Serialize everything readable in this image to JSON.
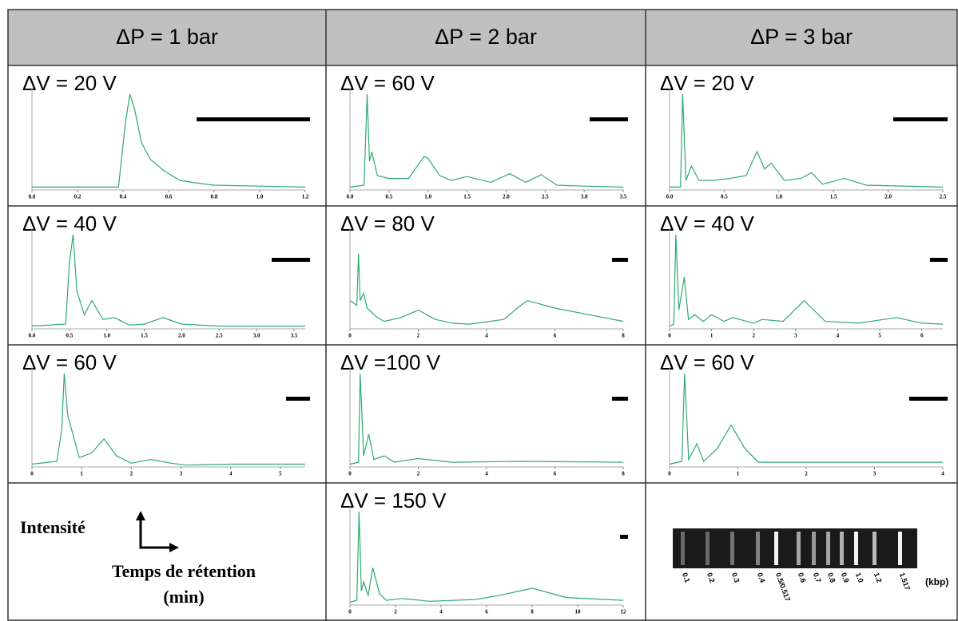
{
  "columns": [
    "ΔP = 1 bar",
    "ΔP = 2 bar",
    "ΔP = 3 bar"
  ],
  "legend": {
    "y_label": "Intensité",
    "x_label": "Temps de rétention",
    "x_unit": "(min)"
  },
  "gel": {
    "lanes": [
      "0.1",
      "0.2",
      "0.3",
      "0.4",
      "0.5/0.517",
      "0.6",
      "0.7",
      "0.8",
      "0.9",
      "1.0",
      "1.2",
      "1.517"
    ],
    "unit": "(kbp)"
  },
  "chart_data": [
    {
      "type": "line",
      "title": "ΔV = 20 V",
      "color": "#2eaa70",
      "xlim": [
        0,
        1.2
      ],
      "ylim": [
        0,
        100
      ],
      "xticks": [
        {
          "value": 0,
          "label": "0.0"
        },
        0.2,
        0.4,
        0.6,
        0.8,
        {
          "value": 1,
          "label": "1.0"
        },
        1.2
      ],
      "x": [
        0,
        0.38,
        0.41,
        0.43,
        0.45,
        0.48,
        0.52,
        0.58,
        0.65,
        0.7,
        0.8,
        1.0,
        1.2
      ],
      "values": [
        3,
        3,
        70,
        100,
        85,
        50,
        32,
        20,
        10,
        8,
        5,
        4,
        3
      ]
    },
    {
      "type": "line",
      "title": "ΔV = 60 V",
      "color": "#2eaa70",
      "xlim": [
        0,
        3.5
      ],
      "ylim": [
        0,
        100
      ],
      "xticks": [
        {
          "value": 0,
          "label": "0.0"
        },
        0.5,
        {
          "value": 1,
          "label": "1.0"
        },
        1.5,
        {
          "value": 2,
          "label": "2.0"
        },
        2.5,
        {
          "value": 3,
          "label": "3.0"
        },
        3.5
      ],
      "x": [
        0,
        0.18,
        0.22,
        0.25,
        0.28,
        0.35,
        0.5,
        0.75,
        0.95,
        1.0,
        1.15,
        1.3,
        1.5,
        1.8,
        2.05,
        2.25,
        2.45,
        2.65,
        3.0,
        3.5
      ],
      "values": [
        3,
        5,
        100,
        30,
        40,
        15,
        12,
        12,
        35,
        33,
        15,
        10,
        14,
        8,
        17,
        8,
        16,
        5,
        4,
        3
      ]
    },
    {
      "type": "line",
      "title": "ΔV = 20 V",
      "color": "#2eaa70",
      "xlim": [
        0,
        2.5
      ],
      "ylim": [
        0,
        100
      ],
      "xticks": [
        {
          "value": 0,
          "label": "0.0"
        },
        0.5,
        {
          "value": 1,
          "label": "1.0"
        },
        1.5,
        {
          "value": 2,
          "label": "2.0"
        },
        2.5
      ],
      "x": [
        0,
        0.1,
        0.12,
        0.15,
        0.2,
        0.27,
        0.4,
        0.55,
        0.7,
        0.8,
        0.87,
        0.93,
        1.05,
        1.2,
        1.3,
        1.4,
        1.6,
        1.8,
        2.5
      ],
      "values": [
        3,
        3,
        100,
        10,
        25,
        10,
        10,
        12,
        15,
        40,
        22,
        28,
        10,
        12,
        18,
        6,
        12,
        5,
        3
      ]
    },
    {
      "type": "line",
      "title": "ΔV = 40 V",
      "color": "#2eaa70",
      "xlim": [
        0,
        3.65
      ],
      "ylim": [
        0,
        100
      ],
      "xticks": [
        {
          "value": 0,
          "label": "0.0"
        },
        0.5,
        {
          "value": 1,
          "label": "1.0"
        },
        1.5,
        {
          "value": 2,
          "label": "2.0"
        },
        2.5,
        {
          "value": 3,
          "label": "3.0"
        },
        3.5
      ],
      "x": [
        0,
        0.45,
        0.5,
        0.55,
        0.6,
        0.7,
        0.8,
        0.95,
        1.1,
        1.3,
        1.5,
        1.75,
        2.0,
        2.5,
        3.65
      ],
      "values": [
        3,
        5,
        70,
        100,
        40,
        15,
        30,
        10,
        12,
        4,
        5,
        12,
        5,
        3,
        3
      ]
    },
    {
      "type": "line",
      "title": "ΔV = 80 V",
      "color": "#2eaa70",
      "xlim": [
        0,
        8
      ],
      "ylim": [
        0,
        100
      ],
      "xticks": [
        0,
        2,
        4,
        6,
        8
      ],
      "x": [
        0,
        0.2,
        0.25,
        0.3,
        0.4,
        0.5,
        0.8,
        1.0,
        1.5,
        2.0,
        2.5,
        3.0,
        3.5,
        4.5,
        5.0,
        5.2,
        6.0,
        7.0,
        8.0
      ],
      "values": [
        30,
        25,
        80,
        30,
        38,
        22,
        12,
        8,
        12,
        20,
        10,
        6,
        5,
        10,
        25,
        30,
        22,
        15,
        8
      ]
    },
    {
      "type": "line",
      "title": "ΔV = 40 V",
      "color": "#2eaa70",
      "xlim": [
        0,
        6.5
      ],
      "ylim": [
        0,
        100
      ],
      "xticks": [
        0,
        1,
        2,
        3,
        4,
        5,
        6
      ],
      "x": [
        0,
        0.1,
        0.15,
        0.22,
        0.35,
        0.45,
        0.6,
        0.8,
        1.0,
        1.3,
        1.5,
        2.0,
        2.2,
        2.7,
        3.2,
        3.7,
        4.5,
        5.4,
        6.0,
        6.5
      ],
      "values": [
        3,
        5,
        100,
        20,
        55,
        10,
        15,
        8,
        15,
        8,
        12,
        6,
        10,
        8,
        30,
        8,
        6,
        12,
        6,
        5
      ]
    },
    {
      "type": "line",
      "title": "ΔV = 60 V",
      "color": "#2eaa70",
      "xlim": [
        0,
        5.5
      ],
      "ylim": [
        0,
        100
      ],
      "xticks": [
        0,
        1,
        2,
        3,
        4,
        5
      ],
      "x": [
        0,
        0.5,
        0.6,
        0.65,
        0.72,
        0.8,
        0.95,
        1.2,
        1.45,
        1.7,
        2.0,
        2.4,
        2.8,
        3.1,
        4.0,
        5.5
      ],
      "values": [
        3,
        6,
        40,
        100,
        55,
        40,
        10,
        15,
        30,
        12,
        4,
        8,
        4,
        2,
        3,
        3
      ]
    },
    {
      "type": "line",
      "title": "ΔV =100 V",
      "color": "#2eaa70",
      "xlim": [
        0,
        8
      ],
      "ylim": [
        0,
        100
      ],
      "xticks": [
        0,
        2,
        4,
        6,
        8
      ],
      "x": [
        0,
        0.25,
        0.3,
        0.4,
        0.55,
        0.7,
        1.0,
        1.3,
        2.0,
        3.0,
        5.0,
        8.0
      ],
      "values": [
        3,
        5,
        100,
        12,
        35,
        8,
        12,
        5,
        9,
        5,
        6,
        5
      ]
    },
    {
      "type": "line",
      "title": "ΔV = 60 V",
      "color": "#2eaa70",
      "xlim": [
        0,
        4
      ],
      "ylim": [
        0,
        100
      ],
      "xticks": [
        0,
        1,
        2,
        3,
        4
      ],
      "x": [
        0,
        0.18,
        0.22,
        0.28,
        0.4,
        0.5,
        0.7,
        0.9,
        1.1,
        1.3,
        2.0,
        4.0
      ],
      "values": [
        3,
        6,
        100,
        8,
        25,
        6,
        20,
        45,
        20,
        5,
        5,
        5
      ]
    },
    {
      "type": "line",
      "title": "ΔV = 150 V",
      "color": "#2eaa70",
      "xlim": [
        0,
        12
      ],
      "ylim": [
        0,
        100
      ],
      "xticks": [
        0,
        2,
        4,
        6,
        8,
        10,
        12
      ],
      "x": [
        0,
        0.3,
        0.4,
        0.5,
        0.6,
        0.8,
        1.0,
        1.3,
        1.6,
        2.3,
        3.5,
        5.5,
        6.5,
        8.0,
        9.5,
        12.0
      ],
      "values": [
        3,
        5,
        100,
        15,
        25,
        10,
        40,
        12,
        5,
        7,
        4,
        6,
        10,
        18,
        8,
        5
      ]
    }
  ]
}
